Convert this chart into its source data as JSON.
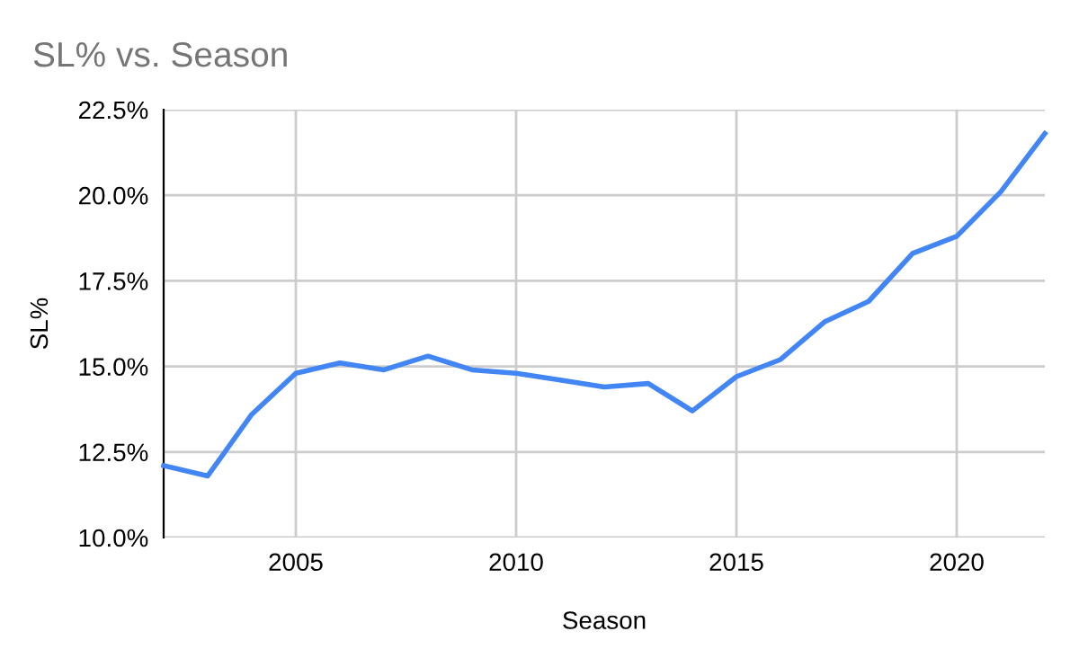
{
  "chart_data": {
    "type": "line",
    "title": "SL% vs. Season",
    "xlabel": "Season",
    "ylabel": "SL%",
    "x": [
      2002,
      2003,
      2004,
      2005,
      2006,
      2007,
      2008,
      2009,
      2010,
      2011,
      2012,
      2013,
      2014,
      2015,
      2016,
      2017,
      2018,
      2019,
      2020,
      2021,
      2022
    ],
    "series": [
      {
        "color": "#4285f4",
        "values": [
          12.1,
          11.8,
          13.6,
          14.8,
          15.1,
          14.9,
          15.3,
          14.9,
          14.8,
          14.6,
          14.4,
          14.5,
          13.7,
          14.7,
          15.2,
          16.3,
          16.9,
          18.3,
          18.8,
          20.1,
          21.8
        ]
      }
    ],
    "xlim": [
      2002,
      2022
    ],
    "xticks": [
      2005,
      2010,
      2015,
      2020
    ],
    "ylim": [
      10,
      22.5
    ],
    "yticks": [
      {
        "value": 10,
        "label": "10.0%"
      },
      {
        "value": 12.5,
        "label": "12.5%"
      },
      {
        "value": 15,
        "label": "15.0%"
      },
      {
        "value": 17.5,
        "label": "17.5%"
      },
      {
        "value": 20,
        "label": "20.0%"
      },
      {
        "value": 22.5,
        "label": "22.5%"
      }
    ],
    "grid": true,
    "marker": "none",
    "line_style": "solid"
  }
}
